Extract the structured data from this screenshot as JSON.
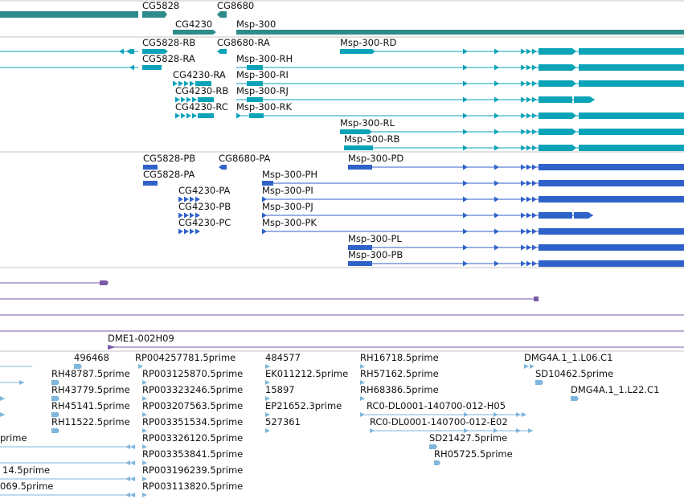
{
  "colors": {
    "gene": "#2e8b8b",
    "transcript": "#0aa3b8",
    "protein": "#2f62c9",
    "clone": "#7a5aa6",
    "est": "#7eb6dd",
    "divider": "#c6c6c6"
  },
  "labels": {
    "gene_cg5828": "CG5828",
    "gene_cg8680": "CG8680",
    "gene_cg4230": "CG4230",
    "gene_msp300": "Msp-300",
    "tx_cg5828_rb": "CG5828-RB",
    "tx_cg8680_ra": "CG8680-RA",
    "tx_msp300_rd": "Msp-300-RD",
    "tx_cg5828_ra": "CG5828-RA",
    "tx_msp300_rh": "Msp-300-RH",
    "tx_cg4230_ra": "CG4230-RA",
    "tx_msp300_ri": "Msp-300-RI",
    "tx_cg4230_rb": "CG4230-RB",
    "tx_msp300_rj": "Msp-300-RJ",
    "tx_cg4230_rc": "CG4230-RC",
    "tx_msp300_rk": "Msp-300-RK",
    "tx_msp300_rl": "Msp-300-RL",
    "tx_msp300_rb": "Msp-300-RB",
    "pr_cg5828_pb": "CG5828-PB",
    "pr_cg8680_pa": "CG8680-PA",
    "pr_msp300_pd": "Msp-300-PD",
    "pr_cg5828_pa": "CG5828-PA",
    "pr_msp300_ph": "Msp-300-PH",
    "pr_cg4230_pa": "CG4230-PA",
    "pr_msp300_pi": "Msp-300-PI",
    "pr_cg4230_pb": "CG4230-PB",
    "pr_msp300_pj": "Msp-300-PJ",
    "pr_cg4230_pc": "CG4230-PC",
    "pr_msp300_pk": "Msp-300-PK",
    "pr_msp300_pl": "Msp-300-PL",
    "pr_msp300_pb": "Msp-300-PB",
    "clone_dme1": "DME1-002H09",
    "est_496468": "496468",
    "est_rp004257781": "RP004257781.5prime",
    "est_484577": "484577",
    "est_rh16718": "RH16718.5prime",
    "est_dmg4a_l06": "DMG4A.1_1.L06.C1",
    "est_rh48787": "RH48787.5prime",
    "est_rp003125870": "RP003125870.5prime",
    "est_ek011212": "EK011212.5prime",
    "est_rh57162": "RH57162.5prime",
    "est_sd10462": "SD10462.5prime",
    "est_rh43779": "RH43779.5prime",
    "est_rp003323246": "RP003323246.5prime",
    "est_15897": "15897",
    "est_rh68386": "RH68386.5prime",
    "est_dmg4a_l22": "DMG4A.1_1.L22.C1",
    "est_rh45141": "RH45141.5prime",
    "est_rp003207563": "RP003207563.5prime",
    "est_ep21652": "EP21652.3prime",
    "est_rc0_h05": "RC0-DL0001-140700-012-H05",
    "est_rh11522": "RH11522.5prime",
    "est_rp003351534": "RP003351534.5prime",
    "est_527361": "527361",
    "est_rc0_e02": "RC0-DL0001-140700-012-E02",
    "est_prime_cut": "prime",
    "est_rp003326120": "RP003326120.5prime",
    "est_sd21427": "SD21427.5prime",
    "est_rp003353841": "RP003353841.5prime",
    "est_rh05725": "RH05725.5prime",
    "est_14_5prime_cut": "14.5prime",
    "est_rp003196239": "RP003196239.5prime",
    "est_069_5prime_cut": "069.5prime",
    "est_rp003113820": "RP003113820.5prime"
  }
}
